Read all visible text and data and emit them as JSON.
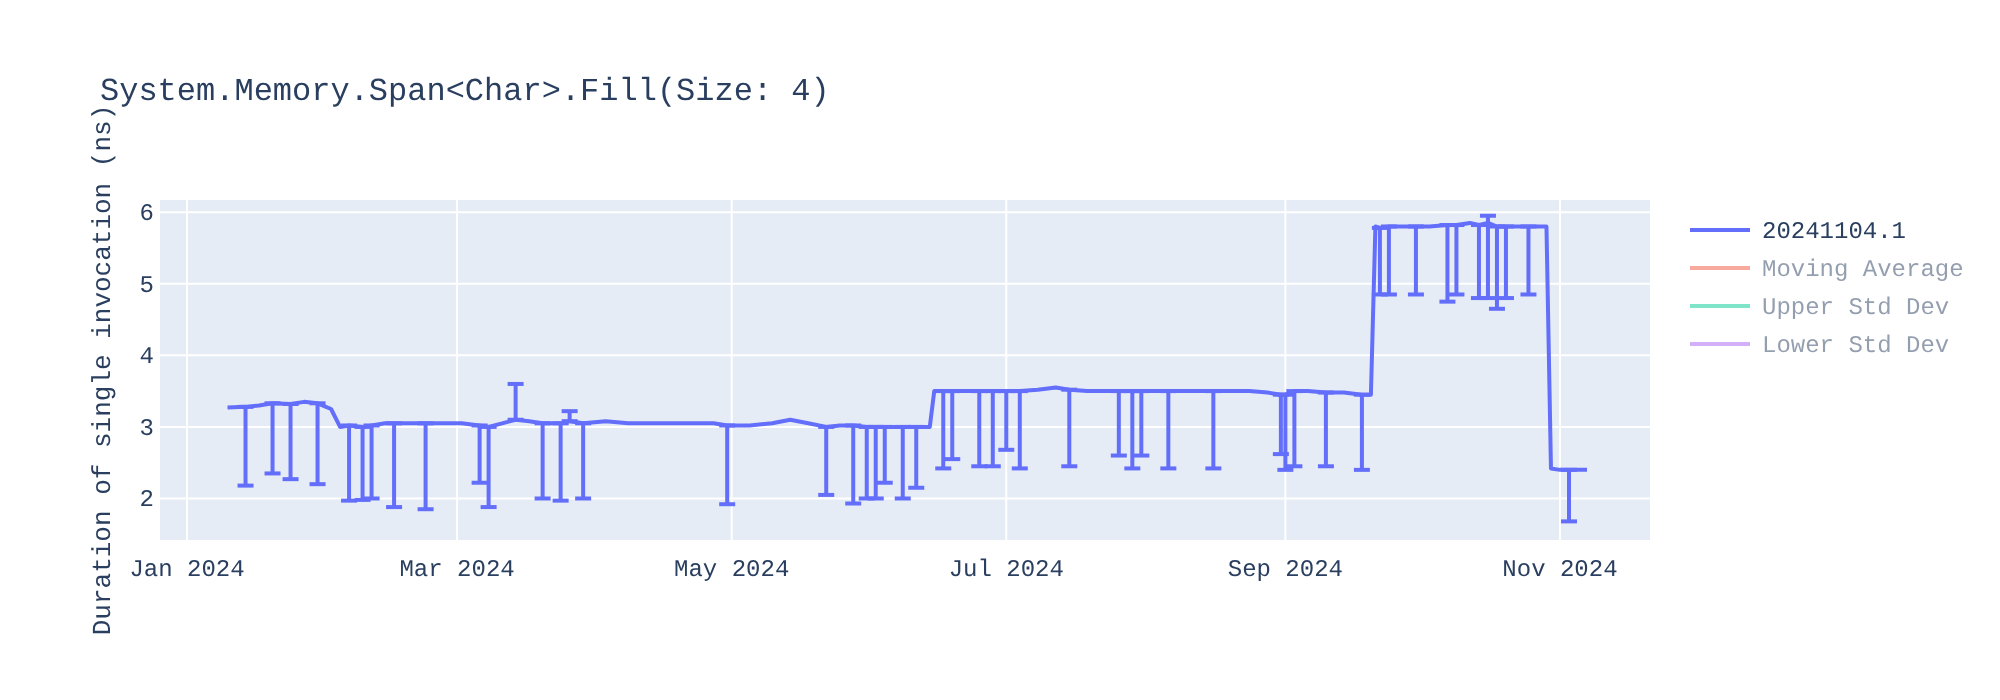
{
  "chart_data": {
    "type": "line",
    "title": "System.Memory.Span<Char>.Fill(Size: 4)",
    "ylabel": "Duration of single invocation (ns)",
    "x": [
      "2024-01-10",
      "2024-01-14",
      "2024-01-17",
      "2024-01-20",
      "2024-01-24",
      "2024-01-27",
      "2024-01-30",
      "2024-02-02",
      "2024-02-04",
      "2024-02-06",
      "2024-02-09",
      "2024-02-11",
      "2024-02-14",
      "2024-02-16",
      "2024-02-20",
      "2024-02-23",
      "2024-02-27",
      "2024-03-02",
      "2024-03-06",
      "2024-03-08",
      "2024-03-11",
      "2024-03-14",
      "2024-03-17",
      "2024-03-20",
      "2024-03-24",
      "2024-03-26",
      "2024-03-29",
      "2024-04-03",
      "2024-04-08",
      "2024-04-13",
      "2024-04-18",
      "2024-04-23",
      "2024-04-27",
      "2024-04-30",
      "2024-05-05",
      "2024-05-10",
      "2024-05-14",
      "2024-05-18",
      "2024-05-22",
      "2024-05-25",
      "2024-05-28",
      "2024-05-31",
      "2024-06-02",
      "2024-06-04",
      "2024-06-06",
      "2024-06-08",
      "2024-06-11",
      "2024-06-14",
      "2024-06-15",
      "2024-06-17",
      "2024-06-19",
      "2024-06-22",
      "2024-06-25",
      "2024-06-28",
      "2024-07-01",
      "2024-07-04",
      "2024-07-08",
      "2024-07-12",
      "2024-07-15",
      "2024-07-19",
      "2024-07-23",
      "2024-07-26",
      "2024-07-29",
      "2024-07-31",
      "2024-08-03",
      "2024-08-06",
      "2024-08-10",
      "2024-08-13",
      "2024-08-16",
      "2024-08-20",
      "2024-08-24",
      "2024-08-28",
      "2024-08-31",
      "2024-09-01",
      "2024-09-03",
      "2024-09-06",
      "2024-09-10",
      "2024-09-14",
      "2024-09-18",
      "2024-09-20",
      "2024-09-21",
      "2024-09-22",
      "2024-09-24",
      "2024-09-27",
      "2024-09-30",
      "2024-10-03",
      "2024-10-07",
      "2024-10-09",
      "2024-10-12",
      "2024-10-14",
      "2024-10-16",
      "2024-10-18",
      "2024-10-20",
      "2024-10-23",
      "2024-10-25",
      "2024-10-29",
      "2024-10-30",
      "2024-11-01",
      "2024-11-03",
      "2024-11-07"
    ],
    "series": [
      {
        "name": "20241104.1",
        "color": "#636efa",
        "values": [
          3.27,
          3.28,
          3.3,
          3.33,
          3.32,
          3.35,
          3.33,
          3.25,
          3.0,
          3.02,
          3.0,
          3.02,
          3.05,
          3.05,
          3.05,
          3.05,
          3.05,
          3.05,
          3.02,
          3.0,
          3.05,
          3.1,
          3.08,
          3.05,
          3.05,
          3.08,
          3.05,
          3.08,
          3.05,
          3.05,
          3.05,
          3.05,
          3.05,
          3.02,
          3.02,
          3.05,
          3.1,
          3.05,
          3.0,
          3.02,
          3.02,
          3.0,
          3.0,
          3.0,
          3.0,
          3.0,
          3.0,
          3.0,
          3.5,
          3.5,
          3.5,
          3.5,
          3.5,
          3.5,
          3.5,
          3.5,
          3.52,
          3.55,
          3.52,
          3.5,
          3.5,
          3.5,
          3.5,
          3.5,
          3.5,
          3.5,
          3.5,
          3.5,
          3.5,
          3.5,
          3.5,
          3.48,
          3.45,
          3.45,
          3.5,
          3.5,
          3.48,
          3.48,
          3.45,
          3.45,
          5.8,
          5.78,
          5.8,
          5.8,
          5.8,
          5.8,
          5.82,
          5.82,
          5.85,
          5.82,
          5.85,
          5.8,
          5.8,
          5.8,
          5.8,
          5.8,
          2.42,
          2.4,
          2.4,
          2.4
        ],
        "errors": [
          null,
          [
            2.18,
            3.28
          ],
          null,
          [
            2.35,
            3.33
          ],
          [
            2.27,
            3.32
          ],
          null,
          [
            2.2,
            3.33
          ],
          null,
          null,
          [
            1.97,
            3.02
          ],
          [
            1.98,
            3.0
          ],
          [
            2.0,
            3.02
          ],
          null,
          [
            1.88,
            3.05
          ],
          null,
          [
            1.85,
            3.05
          ],
          null,
          null,
          [
            2.22,
            3.02
          ],
          [
            1.88,
            3.0
          ],
          null,
          [
            3.1,
            3.6
          ],
          null,
          [
            2.0,
            3.05
          ],
          [
            1.97,
            3.05
          ],
          [
            3.08,
            3.22
          ],
          [
            2.0,
            3.05
          ],
          null,
          null,
          null,
          null,
          null,
          null,
          [
            1.92,
            3.02
          ],
          null,
          null,
          null,
          null,
          [
            2.05,
            3.0
          ],
          null,
          [
            1.93,
            3.02
          ],
          [
            2.0,
            3.0
          ],
          [
            2.0,
            3.0
          ],
          [
            2.22,
            3.0
          ],
          null,
          [
            2.0,
            3.0
          ],
          [
            2.15,
            3.0
          ],
          null,
          null,
          [
            2.42,
            3.5
          ],
          [
            2.55,
            3.5
          ],
          null,
          [
            2.45,
            3.5
          ],
          [
            2.45,
            3.5
          ],
          [
            2.68,
            3.5
          ],
          [
            2.42,
            3.5
          ],
          null,
          null,
          [
            2.45,
            3.52
          ],
          null,
          null,
          [
            2.6,
            3.5
          ],
          [
            2.42,
            3.5
          ],
          [
            2.6,
            3.5
          ],
          null,
          [
            2.42,
            3.5
          ],
          null,
          null,
          [
            2.42,
            3.5
          ],
          null,
          null,
          null,
          [
            2.62,
            3.45
          ],
          [
            2.4,
            3.45
          ],
          [
            2.45,
            3.5
          ],
          null,
          [
            2.45,
            3.48
          ],
          null,
          [
            2.4,
            3.45
          ],
          null,
          null,
          [
            4.85,
            5.78
          ],
          [
            4.85,
            5.8
          ],
          null,
          [
            4.85,
            5.8
          ],
          null,
          [
            4.75,
            5.82
          ],
          [
            4.85,
            5.82
          ],
          null,
          [
            4.8,
            5.82
          ],
          [
            4.8,
            5.95
          ],
          [
            4.65,
            5.8
          ],
          [
            4.8,
            5.8
          ],
          null,
          [
            4.85,
            5.8
          ],
          null,
          null,
          null,
          [
            1.68,
            2.4
          ],
          null
        ]
      },
      {
        "name": "Moving Average",
        "color": "#ef553b",
        "values": [
          null,
          null,
          null,
          null,
          null,
          null,
          null,
          null,
          null,
          null,
          null,
          null,
          null,
          null,
          null,
          null,
          null,
          null,
          null,
          null,
          null,
          null,
          null,
          null,
          null,
          null,
          null,
          null,
          null,
          null,
          null,
          null,
          null,
          null,
          null,
          null,
          null,
          null,
          null,
          null,
          null,
          null,
          null,
          null,
          null,
          null,
          null,
          null,
          null,
          null,
          null,
          null,
          null,
          null,
          null,
          null,
          null,
          null,
          null,
          null,
          null,
          null,
          null,
          null,
          null,
          null,
          null,
          null,
          null,
          null,
          null,
          null,
          null,
          null,
          null,
          null,
          null,
          null,
          null,
          null,
          null,
          null,
          null,
          null,
          null,
          null,
          null,
          null,
          null,
          null,
          null,
          null,
          null,
          null,
          null,
          null,
          null,
          null,
          null,
          null
        ]
      },
      {
        "name": "Upper Std Dev",
        "color": "#00cc96",
        "values": [
          null,
          null,
          null,
          null,
          null,
          null,
          null,
          null,
          null,
          null,
          null,
          null,
          null,
          null,
          null,
          null,
          null,
          null,
          null,
          null,
          null,
          null,
          null,
          null,
          null,
          null,
          null,
          null,
          null,
          null,
          null,
          null,
          null,
          null,
          null,
          null,
          null,
          null,
          null,
          null,
          null,
          null,
          null,
          null,
          null,
          null,
          null,
          null,
          null,
          null,
          null,
          null,
          null,
          null,
          null,
          null,
          null,
          null,
          null,
          null,
          null,
          null,
          null,
          null,
          null,
          null,
          null,
          null,
          null,
          null,
          null,
          null,
          null,
          null,
          null,
          null,
          null,
          null,
          null,
          null,
          null,
          null,
          null,
          null,
          null,
          null,
          null,
          null,
          null,
          null,
          null,
          null,
          null,
          null,
          null,
          null,
          null,
          null,
          null,
          null
        ]
      },
      {
        "name": "Lower Std Dev",
        "color": "#ab63fa",
        "values": [
          null,
          null,
          null,
          null,
          null,
          null,
          null,
          null,
          null,
          null,
          null,
          null,
          null,
          null,
          null,
          null,
          null,
          null,
          null,
          null,
          null,
          null,
          null,
          null,
          null,
          null,
          null,
          null,
          null,
          null,
          null,
          null,
          null,
          null,
          null,
          null,
          null,
          null,
          null,
          null,
          null,
          null,
          null,
          null,
          null,
          null,
          null,
          null,
          null,
          null,
          null,
          null,
          null,
          null,
          null,
          null,
          null,
          null,
          null,
          null,
          null,
          null,
          null,
          null,
          null,
          null,
          null,
          null,
          null,
          null,
          null,
          null,
          null,
          null,
          null,
          null,
          null,
          null,
          null,
          null,
          null,
          null,
          null,
          null,
          null,
          null,
          null,
          null,
          null,
          null,
          null,
          null,
          null,
          null,
          null,
          null,
          null,
          null,
          null,
          null
        ]
      }
    ],
    "xlim": [
      "2023-12-26",
      "2024-11-21"
    ],
    "xticks": [
      {
        "value": "2024-01-01",
        "label": "Jan 2024"
      },
      {
        "value": "2024-03-01",
        "label": "Mar 2024"
      },
      {
        "value": "2024-05-01",
        "label": "May 2024"
      },
      {
        "value": "2024-07-01",
        "label": "Jul 2024"
      },
      {
        "value": "2024-09-01",
        "label": "Sep 2024"
      },
      {
        "value": "2024-11-01",
        "label": "Nov 2024"
      }
    ],
    "ylim": [
      1.42,
      6.17
    ],
    "yticks": [
      2,
      3,
      4,
      5,
      6
    ],
    "grid": true,
    "legend": "top right"
  }
}
